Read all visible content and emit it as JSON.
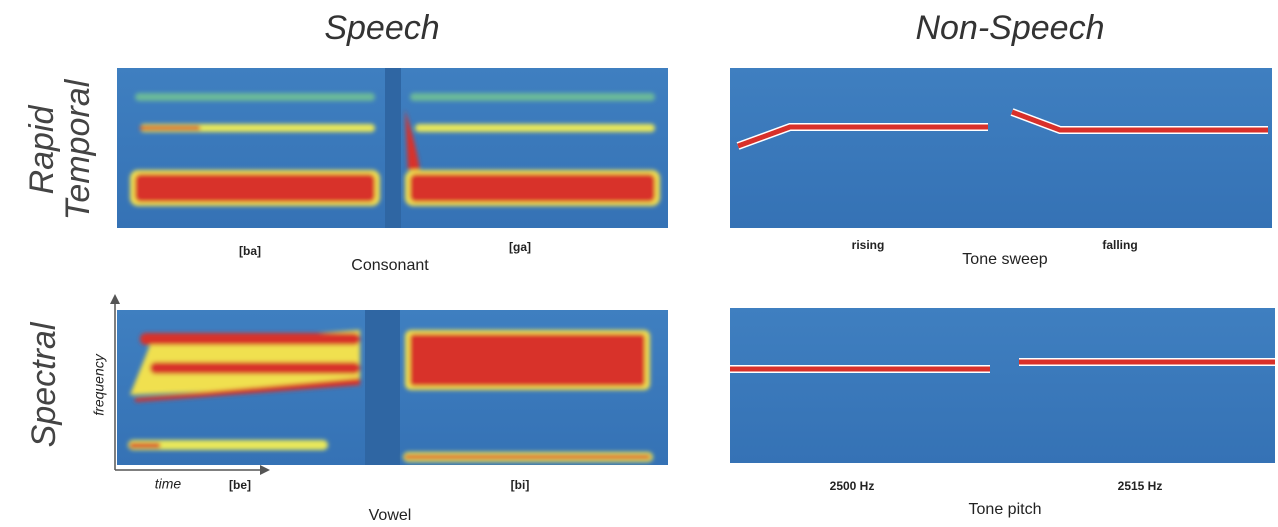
{
  "columns": [
    {
      "title": "Speech"
    },
    {
      "title": "Non-Speech"
    }
  ],
  "rows": [
    {
      "label_lines": [
        "Rapid",
        "Temporal"
      ]
    },
    {
      "label_lines": [
        "Spectral"
      ]
    }
  ],
  "panels": {
    "consonant": {
      "left": "[ba]",
      "right": "[ga]",
      "caption": "Consonant"
    },
    "tone_sweep": {
      "left": "rising",
      "right": "falling",
      "caption": "Tone sweep"
    },
    "vowel": {
      "left": "[be]",
      "right": "[bi]",
      "caption": "Vowel",
      "x_axis": "time",
      "y_axis": "frequency"
    },
    "tone_pitch": {
      "left": "2500 Hz",
      "right": "2515 Hz",
      "caption": "Tone pitch"
    }
  }
}
